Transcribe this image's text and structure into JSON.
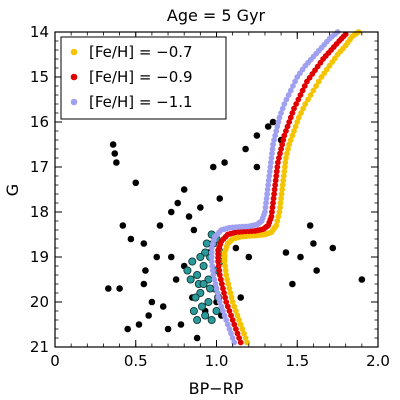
{
  "chart_data": {
    "type": "scatter",
    "title": "Age = 5 Gyr",
    "xlabel": "BP−RP",
    "ylabel": "G",
    "xlim": [
      0,
      2.0
    ],
    "ylim": [
      21,
      14
    ],
    "y_inverted": true,
    "xticks": [
      "0",
      "0.5",
      "1.0",
      "1.5",
      "2.0"
    ],
    "xtick_values": [
      0,
      0.5,
      1.0,
      1.5,
      2.0
    ],
    "yticks": [
      "14",
      "15",
      "16",
      "17",
      "18",
      "19",
      "20",
      "21"
    ],
    "ytick_values": [
      14,
      15,
      16,
      17,
      18,
      19,
      20,
      21
    ],
    "legend_position": "top-left",
    "isochrones": [
      {
        "name": "[Fe/H] = −0.7",
        "color": "#f5c400",
        "points": [
          [
            1.19,
            20.9
          ],
          [
            1.16,
            20.6
          ],
          [
            1.13,
            20.3
          ],
          [
            1.1,
            20.0
          ],
          [
            1.08,
            19.7
          ],
          [
            1.06,
            19.4
          ],
          [
            1.05,
            19.1
          ],
          [
            1.05,
            18.9
          ],
          [
            1.07,
            18.7
          ],
          [
            1.1,
            18.6
          ],
          [
            1.15,
            18.55
          ],
          [
            1.2,
            18.53
          ],
          [
            1.25,
            18.52
          ],
          [
            1.3,
            18.5
          ],
          [
            1.34,
            18.45
          ],
          [
            1.37,
            18.3
          ],
          [
            1.39,
            18.0
          ],
          [
            1.4,
            17.7
          ],
          [
            1.41,
            17.4
          ],
          [
            1.42,
            17.1
          ],
          [
            1.43,
            16.8
          ],
          [
            1.45,
            16.5
          ],
          [
            1.48,
            16.2
          ],
          [
            1.51,
            15.9
          ],
          [
            1.55,
            15.6
          ],
          [
            1.6,
            15.3
          ],
          [
            1.65,
            15.0
          ],
          [
            1.7,
            14.75
          ],
          [
            1.75,
            14.5
          ],
          [
            1.8,
            14.3
          ],
          [
            1.84,
            14.1
          ],
          [
            1.88,
            14.0
          ]
        ]
      },
      {
        "name": "[Fe/H] = −0.9",
        "color": "#e00000",
        "points": [
          [
            1.15,
            20.9
          ],
          [
            1.12,
            20.6
          ],
          [
            1.09,
            20.3
          ],
          [
            1.06,
            20.0
          ],
          [
            1.04,
            19.7
          ],
          [
            1.02,
            19.4
          ],
          [
            1.01,
            19.1
          ],
          [
            1.01,
            18.85
          ],
          [
            1.03,
            18.65
          ],
          [
            1.07,
            18.5
          ],
          [
            1.12,
            18.45
          ],
          [
            1.18,
            18.43
          ],
          [
            1.24,
            18.42
          ],
          [
            1.29,
            18.38
          ],
          [
            1.32,
            18.3
          ],
          [
            1.34,
            18.1
          ],
          [
            1.35,
            17.8
          ],
          [
            1.36,
            17.5
          ],
          [
            1.37,
            17.2
          ],
          [
            1.38,
            16.9
          ],
          [
            1.4,
            16.6
          ],
          [
            1.42,
            16.3
          ],
          [
            1.45,
            16.0
          ],
          [
            1.48,
            15.7
          ],
          [
            1.52,
            15.4
          ],
          [
            1.56,
            15.1
          ],
          [
            1.61,
            14.85
          ],
          [
            1.66,
            14.6
          ],
          [
            1.71,
            14.4
          ],
          [
            1.76,
            14.2
          ],
          [
            1.8,
            14.05
          ]
        ]
      },
      {
        "name": "[Fe/H] = −1.1",
        "color": "#a0a0f0",
        "points": [
          [
            1.11,
            20.9
          ],
          [
            1.08,
            20.6
          ],
          [
            1.05,
            20.3
          ],
          [
            1.02,
            20.0
          ],
          [
            1.0,
            19.7
          ],
          [
            0.98,
            19.4
          ],
          [
            0.97,
            19.1
          ],
          [
            0.97,
            18.8
          ],
          [
            0.99,
            18.55
          ],
          [
            1.03,
            18.4
          ],
          [
            1.08,
            18.35
          ],
          [
            1.14,
            18.33
          ],
          [
            1.2,
            18.32
          ],
          [
            1.25,
            18.28
          ],
          [
            1.28,
            18.2
          ],
          [
            1.3,
            18.0
          ],
          [
            1.31,
            17.7
          ],
          [
            1.32,
            17.4
          ],
          [
            1.33,
            17.1
          ],
          [
            1.34,
            16.8
          ],
          [
            1.35,
            16.5
          ],
          [
            1.37,
            16.2
          ],
          [
            1.39,
            15.9
          ],
          [
            1.42,
            15.6
          ],
          [
            1.46,
            15.3
          ],
          [
            1.5,
            15.0
          ],
          [
            1.55,
            14.75
          ],
          [
            1.6,
            14.55
          ],
          [
            1.65,
            14.35
          ],
          [
            1.7,
            14.15
          ],
          [
            1.75,
            14.0
          ]
        ]
      }
    ],
    "field_stars": {
      "color": "#000000",
      "points": [
        [
          0.36,
          16.5
        ],
        [
          0.37,
          16.7
        ],
        [
          0.38,
          16.9
        ],
        [
          0.5,
          17.35
        ],
        [
          0.42,
          18.3
        ],
        [
          0.47,
          18.6
        ],
        [
          0.55,
          18.7
        ],
        [
          0.63,
          19.0
        ],
        [
          0.56,
          19.3
        ],
        [
          0.4,
          19.7
        ],
        [
          0.33,
          19.7
        ],
        [
          0.55,
          19.6
        ],
        [
          0.6,
          20.0
        ],
        [
          0.67,
          20.1
        ],
        [
          0.7,
          20.6
        ],
        [
          0.45,
          20.6
        ],
        [
          0.52,
          20.5
        ],
        [
          0.58,
          20.3
        ],
        [
          0.65,
          18.3
        ],
        [
          0.72,
          18.0
        ],
        [
          0.76,
          17.8
        ],
        [
          0.8,
          17.5
        ],
        [
          0.83,
          18.1
        ],
        [
          0.9,
          17.9
        ],
        [
          0.98,
          17.0
        ],
        [
          1.02,
          17.7
        ],
        [
          1.05,
          16.9
        ],
        [
          1.18,
          16.6
        ],
        [
          1.25,
          17.0
        ],
        [
          1.25,
          16.3
        ],
        [
          1.32,
          16.1
        ],
        [
          1.35,
          16.0
        ],
        [
          1.4,
          16.4
        ],
        [
          1.43,
          18.9
        ],
        [
          1.47,
          19.6
        ],
        [
          1.52,
          19.0
        ],
        [
          1.58,
          18.3
        ],
        [
          1.6,
          18.7
        ],
        [
          1.62,
          19.3
        ],
        [
          1.72,
          18.8
        ],
        [
          1.9,
          19.5
        ],
        [
          0.78,
          20.5
        ],
        [
          0.88,
          20.8
        ],
        [
          1.03,
          20.3
        ],
        [
          0.75,
          19.5
        ],
        [
          0.85,
          19.9
        ],
        [
          0.93,
          20.2
        ],
        [
          1.0,
          20.0
        ],
        [
          0.72,
          19.0
        ],
        [
          0.86,
          18.4
        ],
        [
          1.12,
          18.8
        ],
        [
          1.2,
          19.0
        ],
        [
          1.15,
          19.9
        ],
        [
          0.8,
          19.2
        ],
        [
          0.95,
          18.9
        ]
      ]
    },
    "cluster_members": {
      "color": "#2a9a9a",
      "points": [
        [
          0.92,
          19.2
        ],
        [
          0.95,
          19.5
        ],
        [
          0.9,
          19.8
        ],
        [
          0.88,
          19.4
        ],
        [
          0.96,
          19.0
        ],
        [
          0.93,
          18.9
        ],
        [
          0.98,
          18.7
        ],
        [
          1.0,
          18.6
        ],
        [
          0.97,
          18.5
        ],
        [
          0.94,
          18.7
        ],
        [
          0.89,
          19.6
        ],
        [
          0.87,
          19.9
        ],
        [
          0.91,
          20.1
        ],
        [
          0.93,
          20.3
        ],
        [
          0.95,
          20.0
        ],
        [
          0.99,
          19.7
        ],
        [
          1.01,
          19.9
        ],
        [
          0.86,
          20.2
        ],
        [
          0.84,
          19.5
        ],
        [
          0.82,
          19.3
        ],
        [
          0.85,
          19.1
        ],
        [
          0.9,
          19.0
        ],
        [
          0.99,
          19.3
        ],
        [
          1.02,
          19.1
        ],
        [
          1.03,
          18.9
        ],
        [
          0.96,
          19.7
        ],
        [
          0.92,
          19.6
        ],
        [
          0.88,
          20.4
        ],
        [
          0.97,
          20.4
        ],
        [
          1.0,
          20.2
        ]
      ]
    }
  }
}
